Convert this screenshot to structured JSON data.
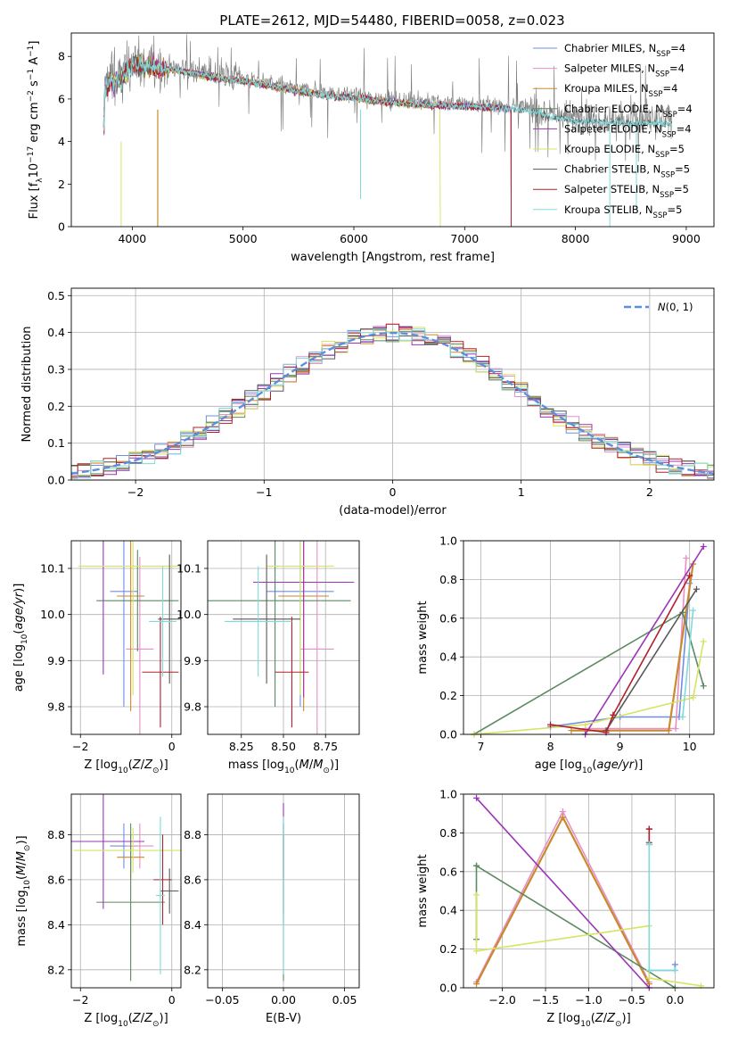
{
  "title": "PLATE=2612, MJD=54480, FIBERID=0058, z=0.023",
  "colors": [
    "#6f8fe0",
    "#e78fc8",
    "#c98a2e",
    "#5c8a62",
    "#9b34b8",
    "#d6e462",
    "#595959",
    "#b3202a",
    "#7fdada"
  ],
  "series_names": [
    "Chabrier MILES, N_SSP=4",
    "Salpeter MILES, N_SSP=4",
    "Kroupa MILES, N_SSP=4",
    "Chabrier ELODIE, N_SSP=4",
    "Salpeter ELODIE, N_SSP=4",
    "Kroupa ELODIE, N_SSP=5",
    "Chabrier STELIB, N_SSP=5",
    "Salpeter STELIB, N_SSP=5",
    "Kroupa STELIB, N_SSP=5"
  ],
  "chart_data": [
    {
      "id": "spectrum",
      "type": "line",
      "xlabel": "wavelength [Angstrom, rest frame]",
      "ylabel": "Flux [f_λ 10^-17 erg cm^-2 s^-1 A^-1]",
      "xlim": [
        3450,
        9250
      ],
      "ylim": [
        0,
        9.1
      ],
      "xticks": [
        4000,
        5000,
        6000,
        7000,
        8000,
        9000
      ],
      "yticks": [
        0,
        2,
        4,
        6,
        8
      ],
      "continuum": [
        [
          3750,
          6.6
        ],
        [
          3800,
          6.9
        ],
        [
          3900,
          7.0
        ],
        [
          4000,
          7.8
        ],
        [
          4200,
          7.6
        ],
        [
          4400,
          7.5
        ],
        [
          4600,
          7.3
        ],
        [
          4800,
          7.1
        ],
        [
          5000,
          7.0
        ],
        [
          5200,
          6.8
        ],
        [
          5500,
          6.5
        ],
        [
          5800,
          6.3
        ],
        [
          6000,
          6.2
        ],
        [
          6300,
          6.0
        ],
        [
          6600,
          5.9
        ],
        [
          7000,
          5.8
        ],
        [
          7400,
          5.7
        ],
        [
          7600,
          5.6
        ],
        [
          7800,
          5.3
        ],
        [
          8000,
          5.1
        ],
        [
          8200,
          5.1
        ],
        [
          8500,
          5.0
        ],
        [
          8800,
          5.0
        ]
      ]
    },
    {
      "id": "residuals",
      "type": "histogram",
      "xlabel": "(data-model)/error",
      "ylabel": "Normed distribution",
      "legend": "N(0,1)",
      "xlim": [
        -2.5,
        2.5
      ],
      "ylim": [
        0,
        0.52
      ],
      "xticks": [
        -2,
        -1,
        0,
        1,
        2
      ],
      "yticks": [
        0.0,
        0.1,
        0.2,
        0.3,
        0.4,
        0.5
      ],
      "bin_width": 0.1,
      "gaussian": {
        "mean": 0,
        "sigma": 1
      }
    },
    {
      "id": "age-vs-Z",
      "type": "errorbar",
      "xlabel": "Z [log10(Z/Z⊙)]",
      "ylabel": "age  [log10(age/yr)]",
      "xlim": [
        -2.2,
        0.2
      ],
      "ylim": [
        9.74,
        10.16
      ],
      "xticks": [
        -2,
        0
      ],
      "yticks": [
        9.8,
        9.9,
        10.0,
        10.1
      ],
      "points": [
        {
          "x": -1.05,
          "y": 10.05,
          "xerr": 0.3,
          "yerr": 0.25
        },
        {
          "x": -0.7,
          "y": 9.925,
          "xerr": 0.3,
          "yerr": 0.2
        },
        {
          "x": -0.9,
          "y": 10.04,
          "xerr": 0.3,
          "yerr": 0.25
        },
        {
          "x": -0.75,
          "y": 10.03,
          "xerr": 0.9,
          "yerr": 0.11
        },
        {
          "x": -1.5,
          "y": 10.17,
          "xerr": 1.7,
          "yerr": 0.3
        },
        {
          "x": -0.85,
          "y": 10.105,
          "xerr": 1.2,
          "yerr": 0.28
        },
        {
          "x": -0.05,
          "y": 9.99,
          "xerr": 0.25,
          "yerr": 0.14
        },
        {
          "x": -0.25,
          "y": 9.875,
          "xerr": 0.4,
          "yerr": 0.12
        },
        {
          "x": -0.2,
          "y": 9.985,
          "xerr": 0.3,
          "yerr": 0.12
        }
      ]
    },
    {
      "id": "age-vs-mass",
      "type": "errorbar",
      "xlabel": "mass [log10(M/M⊙)]",
      "ylabel": "",
      "xlim": [
        8.05,
        8.95
      ],
      "ylim": [
        9.74,
        10.16
      ],
      "xticks": [
        8.25,
        8.5,
        8.75
      ],
      "yticks": [
        9.8,
        9.9,
        10.0,
        10.1
      ],
      "points": [
        {
          "x": 8.6,
          "y": 10.05,
          "xerr": 0.2,
          "yerr": 0.25
        },
        {
          "x": 8.7,
          "y": 9.925,
          "xerr": 0.1,
          "yerr": 0.3
        },
        {
          "x": 8.62,
          "y": 10.04,
          "xerr": 0.15,
          "yerr": 0.25
        },
        {
          "x": 8.45,
          "y": 10.03,
          "xerr": 0.45,
          "yerr": 0.23
        },
        {
          "x": 8.62,
          "y": 10.07,
          "xerr": 0.3,
          "yerr": 0.25
        },
        {
          "x": 8.6,
          "y": 10.105,
          "xerr": 0.2,
          "yerr": 0.28
        },
        {
          "x": 8.4,
          "y": 9.99,
          "xerr": 0.2,
          "yerr": 0.14
        },
        {
          "x": 8.55,
          "y": 9.875,
          "xerr": 0.1,
          "yerr": 0.12
        },
        {
          "x": 8.35,
          "y": 9.985,
          "xerr": 0.2,
          "yerr": 0.12
        }
      ]
    },
    {
      "id": "mass-weight-vs-age",
      "type": "line",
      "xlabel": "age  [log10(age/yr)]",
      "ylabel": "mass weight",
      "xlim": [
        6.75,
        10.35
      ],
      "ylim": [
        0,
        1.0
      ],
      "xticks": [
        7,
        8,
        9,
        10
      ],
      "yticks": [
        0.0,
        0.2,
        0.4,
        0.6,
        0.8,
        1.0
      ],
      "series": [
        {
          "points": [
            [
              8.0,
              0.04
            ],
            [
              9.0,
              0.09
            ],
            [
              9.85,
              0.09
            ],
            [
              10.0,
              0.78
            ]
          ]
        },
        {
          "points": [
            [
              8.5,
              0.03
            ],
            [
              9.8,
              0.03
            ],
            [
              9.95,
              0.91
            ]
          ]
        },
        {
          "points": [
            [
              8.3,
              0.02
            ],
            [
              9.7,
              0.02
            ],
            [
              10.05,
              0.88
            ]
          ]
        },
        {
          "points": [
            [
              6.9,
              0.0
            ],
            [
              9.9,
              0.63
            ],
            [
              10.2,
              0.25
            ]
          ]
        },
        {
          "points": [
            [
              8.5,
              0.0
            ],
            [
              10.2,
              0.97
            ]
          ]
        },
        {
          "points": [
            [
              6.9,
              0.0
            ],
            [
              8.5,
              0.05
            ],
            [
              10.05,
              0.19
            ],
            [
              10.2,
              0.48
            ]
          ]
        },
        {
          "points": [
            [
              8.8,
              0.02
            ],
            [
              10.1,
              0.75
            ]
          ]
        },
        {
          "points": [
            [
              8.0,
              0.05
            ],
            [
              8.8,
              0.01
            ],
            [
              8.9,
              0.1
            ],
            [
              10.0,
              0.82
            ]
          ]
        },
        {
          "points": [
            [
              9.9,
              0.09
            ],
            [
              10.05,
              0.64
            ]
          ]
        }
      ]
    },
    {
      "id": "mass-vs-Z",
      "type": "errorbar",
      "xlabel": "Z [log10(Z/Z⊙)]",
      "ylabel": "mass [log10(M/M⊙)]",
      "xlim": [
        -2.2,
        0.2
      ],
      "ylim": [
        8.12,
        8.98
      ],
      "xticks": [
        -2,
        0
      ],
      "yticks": [
        8.2,
        8.4,
        8.6,
        8.8
      ],
      "points": [
        {
          "x": -1.05,
          "y": 8.75,
          "xerr": 0.3,
          "yerr": 0.1
        },
        {
          "x": -0.7,
          "y": 8.75,
          "xerr": 0.3,
          "yerr": 0.1
        },
        {
          "x": -0.9,
          "y": 8.7,
          "xerr": 0.3,
          "yerr": 0.1
        },
        {
          "x": -0.9,
          "y": 8.5,
          "xerr": 0.75,
          "yerr": 0.35
        },
        {
          "x": -1.5,
          "y": 8.77,
          "xerr": 0.9,
          "yerr": 0.3
        },
        {
          "x": -0.85,
          "y": 8.73,
          "xerr": 1.3,
          "yerr": 0.1
        },
        {
          "x": -0.05,
          "y": 8.55,
          "xerr": 0.2,
          "yerr": 0.1
        },
        {
          "x": -0.2,
          "y": 8.6,
          "xerr": 0.2,
          "yerr": 0.2
        },
        {
          "x": -0.25,
          "y": 8.53,
          "xerr": 0.1,
          "yerr": 0.35
        }
      ]
    },
    {
      "id": "mass-vs-EBV",
      "type": "errorbar",
      "xlabel": "E(B-V)",
      "ylabel": "",
      "xlim": [
        -0.062,
        0.062
      ],
      "ylim": [
        8.12,
        8.98
      ],
      "xticks": [
        -0.05,
        0.0,
        0.05
      ],
      "yticks": [
        8.2,
        8.4,
        8.6,
        8.8
      ],
      "points": [
        {
          "x": 0,
          "y": 8.75,
          "xerr": 0,
          "yerr": 0.1
        },
        {
          "x": 0,
          "y": 8.75,
          "xerr": 0,
          "yerr": 0.1
        },
        {
          "x": 0,
          "y": 8.7,
          "xerr": 0,
          "yerr": 0.1
        },
        {
          "x": 0,
          "y": 8.5,
          "xerr": 0,
          "yerr": 0.35
        },
        {
          "x": 0,
          "y": 8.77,
          "xerr": 0,
          "yerr": 0.17
        },
        {
          "x": 0,
          "y": 8.73,
          "xerr": 0,
          "yerr": 0.1
        },
        {
          "x": 0,
          "y": 8.55,
          "xerr": 0,
          "yerr": 0.1
        },
        {
          "x": 0,
          "y": 8.6,
          "xerr": 0,
          "yerr": 0.2
        },
        {
          "x": 0,
          "y": 8.53,
          "xerr": 0,
          "yerr": 0.35
        }
      ]
    },
    {
      "id": "mass-weight-vs-Z",
      "type": "line",
      "xlabel": "Z [log10(Z/Z⊙)]",
      "ylabel": "mass weight",
      "xlim": [
        -2.45,
        0.45
      ],
      "ylim": [
        0,
        1.0
      ],
      "xticks": [
        -2.0,
        -1.5,
        -1.0,
        -0.5,
        0.0
      ],
      "yticks": [
        0.0,
        0.2,
        0.4,
        0.6,
        0.8,
        1.0
      ],
      "series": [
        {
          "points": [
            [
              -0.3,
              0.05
            ],
            [
              -0.3,
              0.09
            ],
            [
              0.0,
              0.09
            ],
            [
              0.0,
              0.12
            ]
          ]
        },
        {
          "points": [
            [
              -2.3,
              0.03
            ],
            [
              -1.3,
              0.91
            ],
            [
              -0.3,
              0.03
            ]
          ]
        },
        {
          "points": [
            [
              -2.3,
              0.02
            ],
            [
              -1.3,
              0.88
            ],
            [
              -0.3,
              0.02
            ]
          ]
        },
        {
          "points": [
            [
              -2.3,
              0.63
            ],
            [
              -2.3,
              0.25
            ],
            [
              -2.3,
              0.63
            ],
            [
              0.0,
              0.0
            ]
          ]
        },
        {
          "points": [
            [
              -2.3,
              0.98
            ],
            [
              -0.3,
              0.0
            ]
          ]
        },
        {
          "points": [
            [
              -2.3,
              0.48
            ],
            [
              -2.3,
              0.19
            ],
            [
              -0.3,
              0.32
            ],
            [
              -0.3,
              0.05
            ],
            [
              0.3,
              0.01
            ]
          ]
        },
        {
          "points": [
            [
              -0.3,
              0.75
            ],
            [
              -0.3,
              0.82
            ]
          ]
        },
        {
          "points": [
            [
              -0.3,
              0.82
            ],
            [
              -0.3,
              0.74
            ]
          ]
        },
        {
          "points": [
            [
              -0.3,
              0.74
            ],
            [
              -0.3,
              0.09
            ],
            [
              0.0,
              0.09
            ]
          ]
        }
      ]
    }
  ]
}
